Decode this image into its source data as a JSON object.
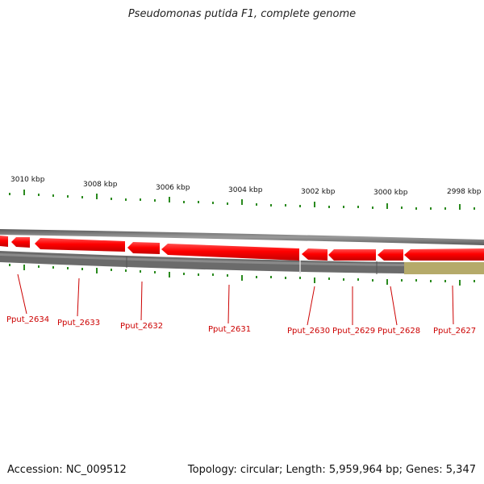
{
  "title": "Pseudomonas putida F1, complete genome",
  "scale_labels": [
    "3010 kbp",
    "3008 kbp",
    "3006 kbp",
    "3004 kbp",
    "3002 kbp",
    "3000 kbp",
    "2998 kbp"
  ],
  "genes": [
    {
      "label": "Pput_2634"
    },
    {
      "label": "Pput_2633"
    },
    {
      "label": "Pput_2632"
    },
    {
      "label": "Pput_2631"
    },
    {
      "label": "Pput_2630"
    },
    {
      "label": "Pput_2629"
    },
    {
      "label": "Pput_2628"
    },
    {
      "label": "Pput_2627"
    }
  ],
  "footer": {
    "accession": "Accession: NC_009512",
    "summary": "Topology: circular; Length: 5,959,964 bp; Genes: 5,347"
  },
  "colors": {
    "gene": "#ff0000",
    "gene_dark": "#b00000",
    "label": "#cc0000",
    "tick": "#2a8a1e",
    "backbone": "#7d7d7d",
    "backbone_olive": "#b5aa6a"
  }
}
